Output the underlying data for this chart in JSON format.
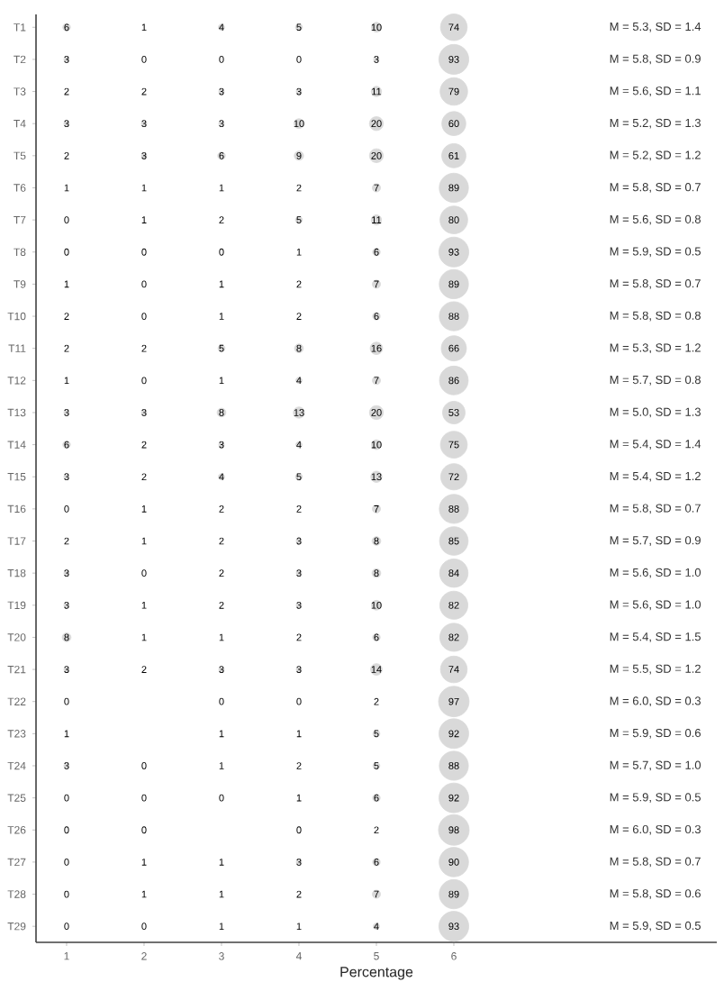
{
  "chart_data": {
    "type": "heatmap",
    "xlabel": "Percentage",
    "data_labels": true,
    "categories": [
      "1",
      "2",
      "3",
      "4",
      "5",
      "6"
    ],
    "y_categories": [
      "T1",
      "T2",
      "T3",
      "T4",
      "T5",
      "T6",
      "T7",
      "T8",
      "T9",
      "T10",
      "T11",
      "T12",
      "T13",
      "T14",
      "T15",
      "T16",
      "T17",
      "T18",
      "T19",
      "T20",
      "T21",
      "T22",
      "T23",
      "T24",
      "T25",
      "T26",
      "T27",
      "T28",
      "T29"
    ],
    "y2_categories": [
      "M = 5.3, SD = 1.4",
      "M = 5.8, SD = 0.9",
      "M = 5.6, SD = 1.1",
      "M = 5.2, SD = 1.3",
      "M = 5.2, SD = 1.2",
      "M = 5.8, SD = 0.7",
      "M = 5.6, SD = 0.8",
      "M = 5.9, SD = 0.5",
      "M = 5.8, SD = 0.7",
      "M = 5.8, SD = 0.8",
      "M = 5.3, SD = 1.2",
      "M = 5.7, SD = 0.8",
      "M = 5.0, SD = 1.3",
      "M = 5.4, SD = 1.4",
      "M = 5.4, SD = 1.2",
      "M = 5.8, SD = 0.7",
      "M = 5.7, SD = 0.9",
      "M = 5.6, SD = 1.0",
      "M = 5.6, SD = 1.0",
      "M = 5.4, SD = 1.5",
      "M = 5.5, SD = 1.2",
      "M = 6.0, SD = 0.3",
      "M = 5.9, SD = 0.6",
      "M = 5.7, SD = 1.0",
      "M = 5.9, SD = 0.5",
      "M = 6.0, SD = 0.3",
      "M = 5.8, SD = 0.7",
      "M = 5.8, SD = 0.6",
      "M = 5.9, SD = 0.5"
    ],
    "cells": [
      [
        6,
        1,
        4,
        5,
        10,
        74
      ],
      [
        3,
        0,
        0,
        0,
        3,
        93
      ],
      [
        2,
        2,
        3,
        3,
        11,
        79
      ],
      [
        3,
        3,
        3,
        10,
        20,
        60
      ],
      [
        2,
        3,
        6,
        9,
        20,
        61
      ],
      [
        1,
        1,
        1,
        2,
        7,
        89
      ],
      [
        0,
        1,
        2,
        5,
        11,
        80
      ],
      [
        0,
        0,
        0,
        1,
        6,
        93
      ],
      [
        1,
        0,
        1,
        2,
        7,
        89
      ],
      [
        2,
        0,
        1,
        2,
        6,
        88
      ],
      [
        2,
        2,
        5,
        8,
        16,
        66
      ],
      [
        1,
        0,
        1,
        4,
        7,
        86
      ],
      [
        3,
        3,
        8,
        13,
        20,
        53
      ],
      [
        6,
        2,
        3,
        4,
        10,
        75
      ],
      [
        3,
        2,
        4,
        5,
        13,
        72
      ],
      [
        0,
        1,
        2,
        2,
        7,
        88
      ],
      [
        2,
        1,
        2,
        3,
        8,
        85
      ],
      [
        3,
        0,
        2,
        3,
        8,
        84
      ],
      [
        3,
        1,
        2,
        3,
        10,
        82
      ],
      [
        8,
        1,
        1,
        2,
        6,
        82
      ],
      [
        3,
        2,
        3,
        3,
        14,
        74
      ],
      [
        0,
        null,
        0,
        0,
        2,
        97
      ],
      [
        1,
        null,
        1,
        1,
        5,
        92
      ],
      [
        3,
        0,
        1,
        2,
        5,
        88
      ],
      [
        0,
        0,
        0,
        1,
        6,
        92
      ],
      [
        0,
        0,
        null,
        0,
        2,
        98
      ],
      [
        0,
        1,
        1,
        3,
        6,
        90
      ],
      [
        0,
        1,
        1,
        2,
        7,
        89
      ],
      [
        0,
        0,
        1,
        1,
        4,
        93
      ]
    ]
  }
}
